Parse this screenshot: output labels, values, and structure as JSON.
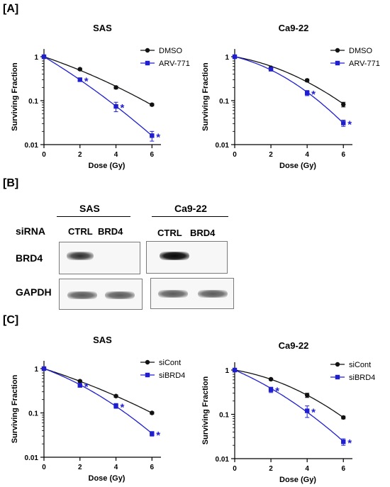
{
  "panels": {
    "a": "[A]",
    "b": "[B]",
    "c": "[C]"
  },
  "colors": {
    "control": "#111111",
    "treated": "#1f1fd1"
  },
  "chart_data": [
    {
      "id": "a-sas",
      "type": "line",
      "title": "SAS",
      "xlabel": "Dose (Gy)",
      "ylabel": "Surviving Fraction",
      "yscale": "log",
      "xlim": [
        0,
        6.5
      ],
      "ylim": [
        0.01,
        1.5
      ],
      "x_ticks": [
        0,
        2,
        4,
        6
      ],
      "y_ticks": [
        1,
        0.1,
        0.01
      ],
      "legend": "top-right",
      "series": [
        {
          "name": "DMSO",
          "color": "#111111",
          "marker": "circle",
          "x": [
            0,
            2,
            4,
            6
          ],
          "y": [
            1,
            0.52,
            0.2,
            0.081
          ],
          "err": [
            0,
            0.03,
            0.015,
            0.005
          ],
          "sig": [
            false,
            false,
            false,
            false
          ]
        },
        {
          "name": "ARV-771",
          "color": "#1f1fd1",
          "marker": "square",
          "x": [
            0,
            2,
            4,
            6
          ],
          "y": [
            1,
            0.3,
            0.074,
            0.016
          ],
          "err": [
            0,
            0.02,
            0.018,
            0.004
          ],
          "sig": [
            false,
            true,
            true,
            true
          ]
        }
      ],
      "annotation": "*"
    },
    {
      "id": "a-ca922",
      "type": "line",
      "title": "Ca9-22",
      "xlabel": "Dose (Gy)",
      "ylabel": "Surviving Fraction",
      "yscale": "log",
      "xlim": [
        0,
        6.5
      ],
      "ylim": [
        0.01,
        1.5
      ],
      "x_ticks": [
        0,
        2,
        4,
        6
      ],
      "y_ticks": [
        1,
        0.1,
        0.01
      ],
      "legend": "top-right",
      "series": [
        {
          "name": "DMSO",
          "color": "#111111",
          "marker": "circle",
          "x": [
            0,
            2,
            4,
            6
          ],
          "y": [
            1,
            0.56,
            0.29,
            0.082
          ],
          "err": [
            0,
            0.03,
            0.02,
            0.01
          ],
          "sig": [
            false,
            false,
            false,
            false
          ]
        },
        {
          "name": "ARV-771",
          "color": "#1f1fd1",
          "marker": "square",
          "x": [
            0,
            2,
            4,
            6
          ],
          "y": [
            1,
            0.52,
            0.15,
            0.031
          ],
          "err": [
            0,
            0.03,
            0.02,
            0.005
          ],
          "sig": [
            false,
            false,
            true,
            true
          ]
        }
      ],
      "annotation": "*"
    },
    {
      "id": "c-sas",
      "type": "line",
      "title": "SAS",
      "xlabel": "Dose (Gy)",
      "ylabel": "Surviving Fraction",
      "yscale": "log",
      "xlim": [
        0,
        6.5
      ],
      "ylim": [
        0.01,
        1.5
      ],
      "x_ticks": [
        0,
        2,
        4,
        6
      ],
      "y_ticks": [
        1,
        0.1,
        0.01
      ],
      "legend": "top-right",
      "series": [
        {
          "name": "siCont",
          "color": "#111111",
          "marker": "circle",
          "x": [
            0,
            2,
            4,
            6
          ],
          "y": [
            1,
            0.52,
            0.24,
            0.1
          ],
          "err": [
            0,
            0.03,
            0.015,
            0.006
          ],
          "sig": [
            false,
            false,
            false,
            false
          ]
        },
        {
          "name": "siBRD4",
          "color": "#1f1fd1",
          "marker": "square",
          "x": [
            0,
            2,
            4,
            6
          ],
          "y": [
            1,
            0.42,
            0.145,
            0.034
          ],
          "err": [
            0,
            0.04,
            0.018,
            0.004
          ],
          "sig": [
            false,
            true,
            true,
            true
          ]
        }
      ],
      "annotation": "*"
    },
    {
      "id": "c-ca922",
      "type": "line",
      "title": "Ca9-22",
      "xlabel": "Dose (Gy)",
      "ylabel": "Surviving Fraction",
      "yscale": "log",
      "xlim": [
        0,
        6.5
      ],
      "ylim": [
        0.01,
        1.5
      ],
      "x_ticks": [
        0,
        2,
        4,
        6
      ],
      "y_ticks": [
        1,
        0.1,
        0.01
      ],
      "legend": "top-right",
      "series": [
        {
          "name": "siCont",
          "color": "#111111",
          "marker": "circle",
          "x": [
            0,
            2,
            4,
            6
          ],
          "y": [
            1,
            0.62,
            0.27,
            0.085
          ],
          "err": [
            0,
            0.03,
            0.03,
            0.006
          ],
          "sig": [
            false,
            false,
            false,
            false
          ]
        },
        {
          "name": "siBRD4",
          "color": "#1f1fd1",
          "marker": "square",
          "x": [
            0,
            2,
            4,
            6
          ],
          "y": [
            1,
            0.36,
            0.12,
            0.024
          ],
          "err": [
            0,
            0.05,
            0.035,
            0.004
          ],
          "sig": [
            false,
            true,
            true,
            true
          ]
        }
      ],
      "annotation": "*"
    }
  ],
  "blot": {
    "groups": [
      "SAS",
      "Ca9-22"
    ],
    "row_header": "siRNA",
    "lanes": [
      "CTRL",
      "BRD4"
    ],
    "proteins": [
      "BRD4",
      "GAPDH"
    ]
  }
}
